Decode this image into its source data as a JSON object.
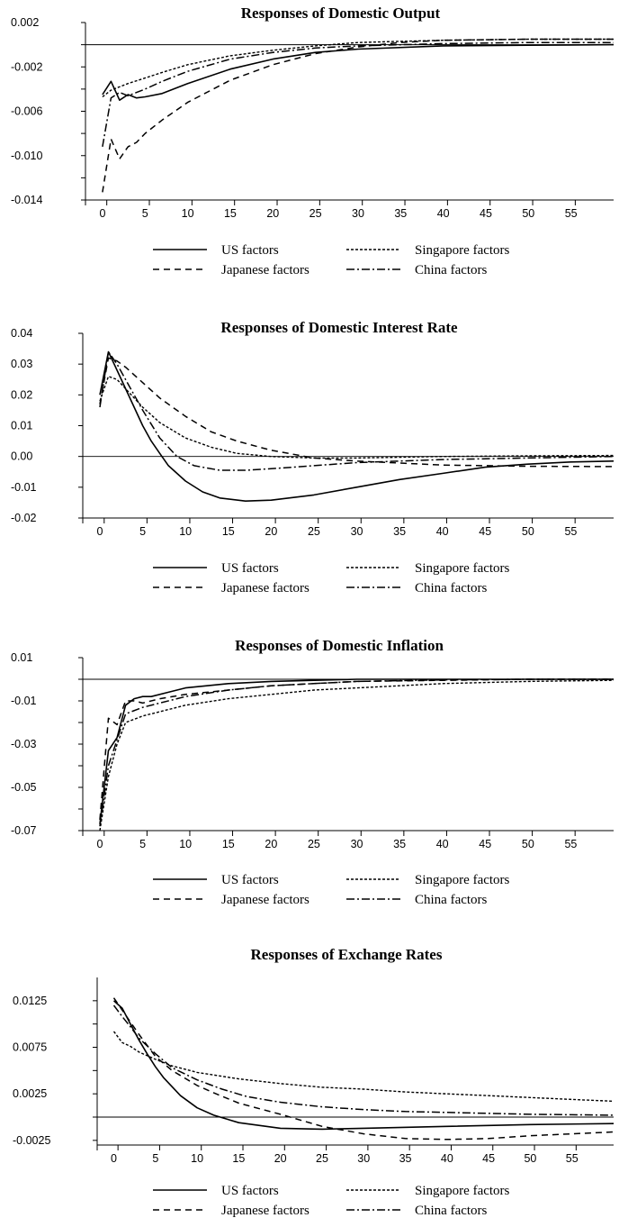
{
  "legend_styles": {
    "us": {
      "dash": "",
      "width": 1.6
    },
    "japan": {
      "dash": "7 5",
      "width": 1.5
    },
    "singapore": {
      "dash": "3 2",
      "width": 1.4
    },
    "china": {
      "dash": "9 3 2 3",
      "width": 1.5
    }
  },
  "chart_data": [
    {
      "type": "line",
      "title": "Responses of Domestic Output",
      "ylim": [
        -0.014,
        0.002
      ],
      "xlim": [
        -2,
        60
      ],
      "yticks": [
        0.002,
        -0.002,
        -0.006,
        -0.01,
        -0.014
      ],
      "ytick_labels": [
        "0.002",
        "-0.002",
        "-0.006",
        "-0.010",
        "-0.014"
      ],
      "yminor": [
        0.0,
        -0.004,
        -0.008,
        -0.012
      ],
      "xticks": [
        0,
        5,
        10,
        15,
        20,
        25,
        30,
        35,
        40,
        45,
        50,
        55
      ],
      "xtick_labels": [
        "0",
        "5",
        "10",
        "15",
        "20",
        "25",
        "30",
        "35",
        "40",
        "45",
        "50",
        "55"
      ],
      "zero_line": 0,
      "grid": false,
      "legend": {
        "position": "bottom",
        "columns": 2,
        "order": [
          "US factors",
          "Singapore factors",
          "Japanese factors",
          "China factors"
        ]
      },
      "series": [
        {
          "name": "US factors",
          "style": "us",
          "x": [
            0,
            1,
            2,
            3,
            4,
            5,
            7,
            10,
            15,
            20,
            25,
            30,
            40,
            50,
            60
          ],
          "y": [
            -0.0045,
            -0.0033,
            -0.005,
            -0.0045,
            -0.0048,
            -0.0047,
            -0.0044,
            -0.0035,
            -0.0022,
            -0.0013,
            -0.0007,
            -0.0004,
            -0.0001,
            -5e-05,
            0.0
          ]
        },
        {
          "name": "Japanese factors",
          "style": "japan",
          "x": [
            0,
            1,
            2,
            3,
            4,
            5,
            7,
            10,
            15,
            20,
            25,
            30,
            35,
            40,
            50,
            60
          ],
          "y": [
            -0.0133,
            -0.0085,
            -0.0103,
            -0.0092,
            -0.0088,
            -0.008,
            -0.0068,
            -0.0052,
            -0.0032,
            -0.0018,
            -0.0008,
            -0.0002,
            0.0002,
            0.0004,
            0.0005,
            0.0005
          ]
        },
        {
          "name": "Singapore factors",
          "style": "singapore",
          "x": [
            0,
            1,
            2,
            3,
            5,
            7,
            10,
            15,
            20,
            25,
            30,
            35,
            40,
            50,
            60
          ],
          "y": [
            -0.0047,
            -0.0041,
            -0.0038,
            -0.0035,
            -0.003,
            -0.0025,
            -0.0018,
            -0.001,
            -0.0005,
            -0.0001,
            0.0002,
            0.0003,
            0.0004,
            0.0005,
            0.0005
          ]
        },
        {
          "name": "China factors",
          "style": "china",
          "x": [
            0,
            1,
            2,
            3,
            4,
            5,
            7,
            10,
            15,
            20,
            25,
            30,
            40,
            50,
            60
          ],
          "y": [
            -0.0092,
            -0.0048,
            -0.0043,
            -0.0046,
            -0.0043,
            -0.004,
            -0.0033,
            -0.0024,
            -0.0013,
            -0.0007,
            -0.0003,
            -0.0001,
            0.0001,
            0.0002,
            0.0002
          ]
        }
      ]
    },
    {
      "type": "line",
      "title": "Responses of Domestic Interest Rate",
      "ylim": [
        -0.02,
        0.04
      ],
      "xlim": [
        -2,
        60
      ],
      "yticks": [
        0.04,
        0.03,
        0.02,
        0.01,
        0.0,
        -0.01,
        -0.02
      ],
      "ytick_labels": [
        "0.04",
        "0.03",
        "0.02",
        "0.01",
        "0.00",
        "-0.01",
        "-0.02"
      ],
      "yminor": [],
      "xticks": [
        0,
        5,
        10,
        15,
        20,
        25,
        30,
        35,
        40,
        45,
        50,
        55
      ],
      "xtick_labels": [
        "0",
        "5",
        "10",
        "15",
        "20",
        "25",
        "30",
        "35",
        "40",
        "45",
        "50",
        "55"
      ],
      "zero_line": 0,
      "grid": false,
      "legend": {
        "position": "bottom",
        "columns": 2,
        "order": [
          "US factors",
          "Singapore factors",
          "Japanese factors",
          "China factors"
        ]
      },
      "series": [
        {
          "name": "US factors",
          "style": "us",
          "x": [
            0,
            1,
            2,
            3,
            4,
            5,
            6,
            7,
            8,
            10,
            12,
            14,
            17,
            20,
            25,
            30,
            35,
            40,
            45,
            50,
            55,
            60
          ],
          "y": [
            0.02,
            0.034,
            0.028,
            0.022,
            0.016,
            0.01,
            0.005,
            0.001,
            -0.003,
            -0.008,
            -0.0115,
            -0.0135,
            -0.0145,
            -0.0142,
            -0.0125,
            -0.01,
            -0.0075,
            -0.0055,
            -0.0035,
            -0.0025,
            -0.0018,
            -0.0015
          ]
        },
        {
          "name": "Japanese factors",
          "style": "japan",
          "x": [
            0,
            1,
            2,
            3,
            5,
            7,
            10,
            13,
            16,
            20,
            25,
            30,
            40,
            50,
            60
          ],
          "y": [
            0.017,
            0.032,
            0.031,
            0.029,
            0.024,
            0.019,
            0.013,
            0.008,
            0.005,
            0.002,
            -0.0005,
            -0.0015,
            -0.0028,
            -0.0032,
            -0.0033
          ]
        },
        {
          "name": "Singapore factors",
          "style": "singapore",
          "x": [
            0,
            1,
            2,
            3,
            5,
            7,
            10,
            13,
            16,
            20,
            25,
            30,
            40,
            50,
            60
          ],
          "y": [
            0.018,
            0.026,
            0.025,
            0.022,
            0.016,
            0.011,
            0.006,
            0.003,
            0.001,
            0.0,
            -0.0005,
            -0.0005,
            0.0,
            0.0002,
            0.0003
          ]
        },
        {
          "name": "China factors",
          "style": "china",
          "x": [
            0,
            1,
            2,
            3,
            5,
            7,
            9,
            11,
            14,
            17,
            20,
            25,
            30,
            40,
            50,
            60
          ],
          "y": [
            0.016,
            0.034,
            0.03,
            0.025,
            0.015,
            0.006,
            0.0,
            -0.003,
            -0.0045,
            -0.0045,
            -0.004,
            -0.003,
            -0.002,
            -0.001,
            -0.0005,
            0.0
          ]
        }
      ]
    },
    {
      "type": "line",
      "title": "Responses of Domestic Inflation",
      "ylim": [
        -0.07,
        0.01
      ],
      "xlim": [
        -2,
        60
      ],
      "yticks": [
        0.01,
        -0.01,
        -0.03,
        -0.05,
        -0.07
      ],
      "ytick_labels": [
        "0.01",
        "-0.01",
        "-0.03",
        "-0.05",
        "-0.07"
      ],
      "yminor": [
        0.0,
        -0.02,
        -0.04,
        -0.06
      ],
      "xticks": [
        0,
        5,
        10,
        15,
        20,
        25,
        30,
        35,
        40,
        45,
        50,
        55
      ],
      "xtick_labels": [
        "0",
        "5",
        "10",
        "15",
        "20",
        "25",
        "30",
        "35",
        "40",
        "45",
        "50",
        "55"
      ],
      "zero_line": 0,
      "grid": false,
      "legend": {
        "position": "bottom",
        "columns": 2,
        "order": [
          "US factors",
          "Singapore factors",
          "Japanese factors",
          "China factors"
        ]
      },
      "series": [
        {
          "name": "US factors",
          "style": "us",
          "x": [
            0,
            1,
            2,
            3,
            4,
            5,
            6,
            8,
            10,
            15,
            20,
            25,
            30,
            40,
            50,
            60
          ],
          "y": [
            -0.067,
            -0.033,
            -0.027,
            -0.012,
            -0.009,
            -0.008,
            -0.008,
            -0.006,
            -0.004,
            -0.002,
            -0.001,
            -0.0005,
            0.0,
            0.0,
            0.0,
            0.0
          ]
        },
        {
          "name": "Japanese factors",
          "style": "japan",
          "x": [
            0,
            1,
            2,
            3,
            4,
            5,
            7,
            10,
            15,
            20,
            25,
            30,
            40,
            50,
            60
          ],
          "y": [
            -0.065,
            -0.018,
            -0.021,
            -0.01,
            -0.01,
            -0.011,
            -0.009,
            -0.007,
            -0.005,
            -0.003,
            -0.002,
            -0.001,
            -0.0005,
            0.0,
            0.0
          ]
        },
        {
          "name": "Singapore factors",
          "style": "singapore",
          "x": [
            0,
            1,
            2,
            3,
            5,
            7,
            10,
            15,
            20,
            25,
            30,
            35,
            40,
            50,
            60
          ],
          "y": [
            -0.07,
            -0.045,
            -0.03,
            -0.02,
            -0.017,
            -0.015,
            -0.012,
            -0.009,
            -0.007,
            -0.005,
            -0.004,
            -0.003,
            -0.002,
            -0.001,
            -0.0005
          ]
        },
        {
          "name": "China factors",
          "style": "china",
          "x": [
            0,
            1,
            2,
            3,
            5,
            7,
            10,
            15,
            20,
            25,
            30,
            40,
            50,
            60
          ],
          "y": [
            -0.068,
            -0.04,
            -0.028,
            -0.016,
            -0.013,
            -0.011,
            -0.008,
            -0.005,
            -0.003,
            -0.002,
            -0.001,
            -0.0003,
            0.0,
            0.0
          ]
        }
      ]
    },
    {
      "type": "line",
      "title": "Responses of Exchange Rates",
      "ylim": [
        -0.003,
        0.015
      ],
      "xlim": [
        -2,
        60
      ],
      "yticks": [
        0.0125,
        0.0075,
        0.0025,
        -0.0025
      ],
      "ytick_labels": [
        "0.0125",
        "0.0075",
        "0.0025",
        "-0.0025"
      ],
      "yminor": [
        0.01,
        0.005,
        0.0
      ],
      "xticks": [
        0,
        5,
        10,
        15,
        20,
        25,
        30,
        35,
        40,
        45,
        50,
        55
      ],
      "xtick_labels": [
        "0",
        "5",
        "10",
        "15",
        "20",
        "25",
        "30",
        "35",
        "40",
        "45",
        "50",
        "55"
      ],
      "zero_line": 0,
      "grid": false,
      "legend": {
        "position": "bottom",
        "columns": 2,
        "order": [
          "US factors",
          "Singapore factors",
          "Japanese factors",
          "China factors"
        ]
      },
      "series": [
        {
          "name": "US factors",
          "style": "us",
          "x": [
            0,
            1,
            2,
            3,
            4,
            5,
            6,
            8,
            10,
            12,
            15,
            20,
            25,
            30,
            40,
            50,
            60
          ],
          "y": [
            0.0125,
            0.0117,
            0.01,
            0.0083,
            0.0068,
            0.0054,
            0.0042,
            0.0023,
            0.001,
            0.0002,
            -0.0006,
            -0.0012,
            -0.0013,
            -0.0012,
            -0.001,
            -0.0008,
            -0.0007
          ]
        },
        {
          "name": "Japanese factors",
          "style": "japan",
          "x": [
            0,
            1,
            2,
            3,
            5,
            7,
            10,
            12,
            15,
            20,
            25,
            30,
            35,
            40,
            45,
            50,
            60
          ],
          "y": [
            0.0128,
            0.0115,
            0.0102,
            0.0089,
            0.0065,
            0.005,
            0.0034,
            0.0026,
            0.0015,
            0.0003,
            -0.001,
            -0.0018,
            -0.0023,
            -0.0024,
            -0.0023,
            -0.002,
            -0.0016
          ]
        },
        {
          "name": "Singapore factors",
          "style": "singapore",
          "x": [
            0,
            1,
            2,
            3,
            5,
            7,
            10,
            15,
            20,
            25,
            30,
            35,
            40,
            45,
            50,
            55,
            60
          ],
          "y": [
            0.0092,
            0.008,
            0.0076,
            0.007,
            0.0062,
            0.0055,
            0.0048,
            0.0041,
            0.0036,
            0.0032,
            0.003,
            0.0027,
            0.0025,
            0.0023,
            0.0021,
            0.0019,
            0.0017
          ]
        },
        {
          "name": "China factors",
          "style": "china",
          "x": [
            0,
            1,
            2,
            3,
            5,
            7,
            10,
            13,
            16,
            20,
            25,
            30,
            35,
            40,
            50,
            60
          ],
          "y": [
            0.012,
            0.0108,
            0.0097,
            0.0085,
            0.0068,
            0.0053,
            0.004,
            0.003,
            0.0022,
            0.0016,
            0.0011,
            0.0008,
            0.0006,
            0.0005,
            0.0003,
            0.0002
          ]
        }
      ]
    }
  ]
}
